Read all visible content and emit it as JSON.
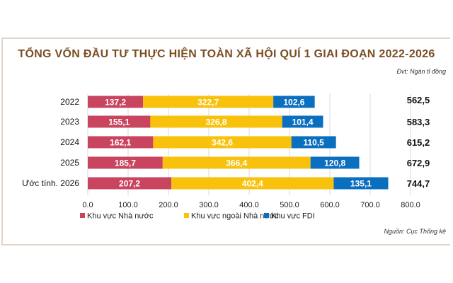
{
  "chart_data": {
    "type": "bar",
    "orientation": "horizontal",
    "stacked": true,
    "title": "TỔNG VỐN ĐẦU TƯ THỰC HIỆN TOÀN XÃ HỘI QUÍ 1 GIAI ĐOẠN 2022-2026",
    "unit_note": "Đvt: Ngàn tỉ đồng",
    "source": "Nguồn: Cục Thống kê",
    "categories": [
      "2022",
      "2023",
      "2024",
      "2025",
      "Ước tính. 2026"
    ],
    "series": [
      {
        "name": "Khu vực Nhà nước",
        "color": "#c9445f",
        "values": [
          137.2,
          155.1,
          162.1,
          185.7,
          207.2
        ],
        "labels": [
          "137,2",
          "155,1",
          "162,1",
          "185,7",
          "207,2"
        ]
      },
      {
        "name": "Khu vực ngoài Nhà nước",
        "color": "#f8c20c",
        "values": [
          322.7,
          326.8,
          342.6,
          366.4,
          402.4
        ],
        "labels": [
          "322,7",
          "326,8",
          "342,6",
          "366,4",
          "402,4"
        ]
      },
      {
        "name": "Khu vực FDI",
        "color": "#0b6fc0",
        "values": [
          102.6,
          101.4,
          110.5,
          120.8,
          135.1
        ],
        "labels": [
          "102,6",
          "101,4",
          "110,5",
          "120,8",
          "135,1"
        ]
      }
    ],
    "totals": [
      "562,5",
      "583,3",
      "615,2",
      "672,9",
      "744,7"
    ],
    "xlim": [
      0,
      800
    ],
    "xticks": [
      "0.0",
      "100.0",
      "200.0",
      "300.0",
      "400.0",
      "500.0",
      "600.0",
      "700.0",
      "800.0"
    ],
    "grid": true,
    "legend_position": "bottom"
  }
}
